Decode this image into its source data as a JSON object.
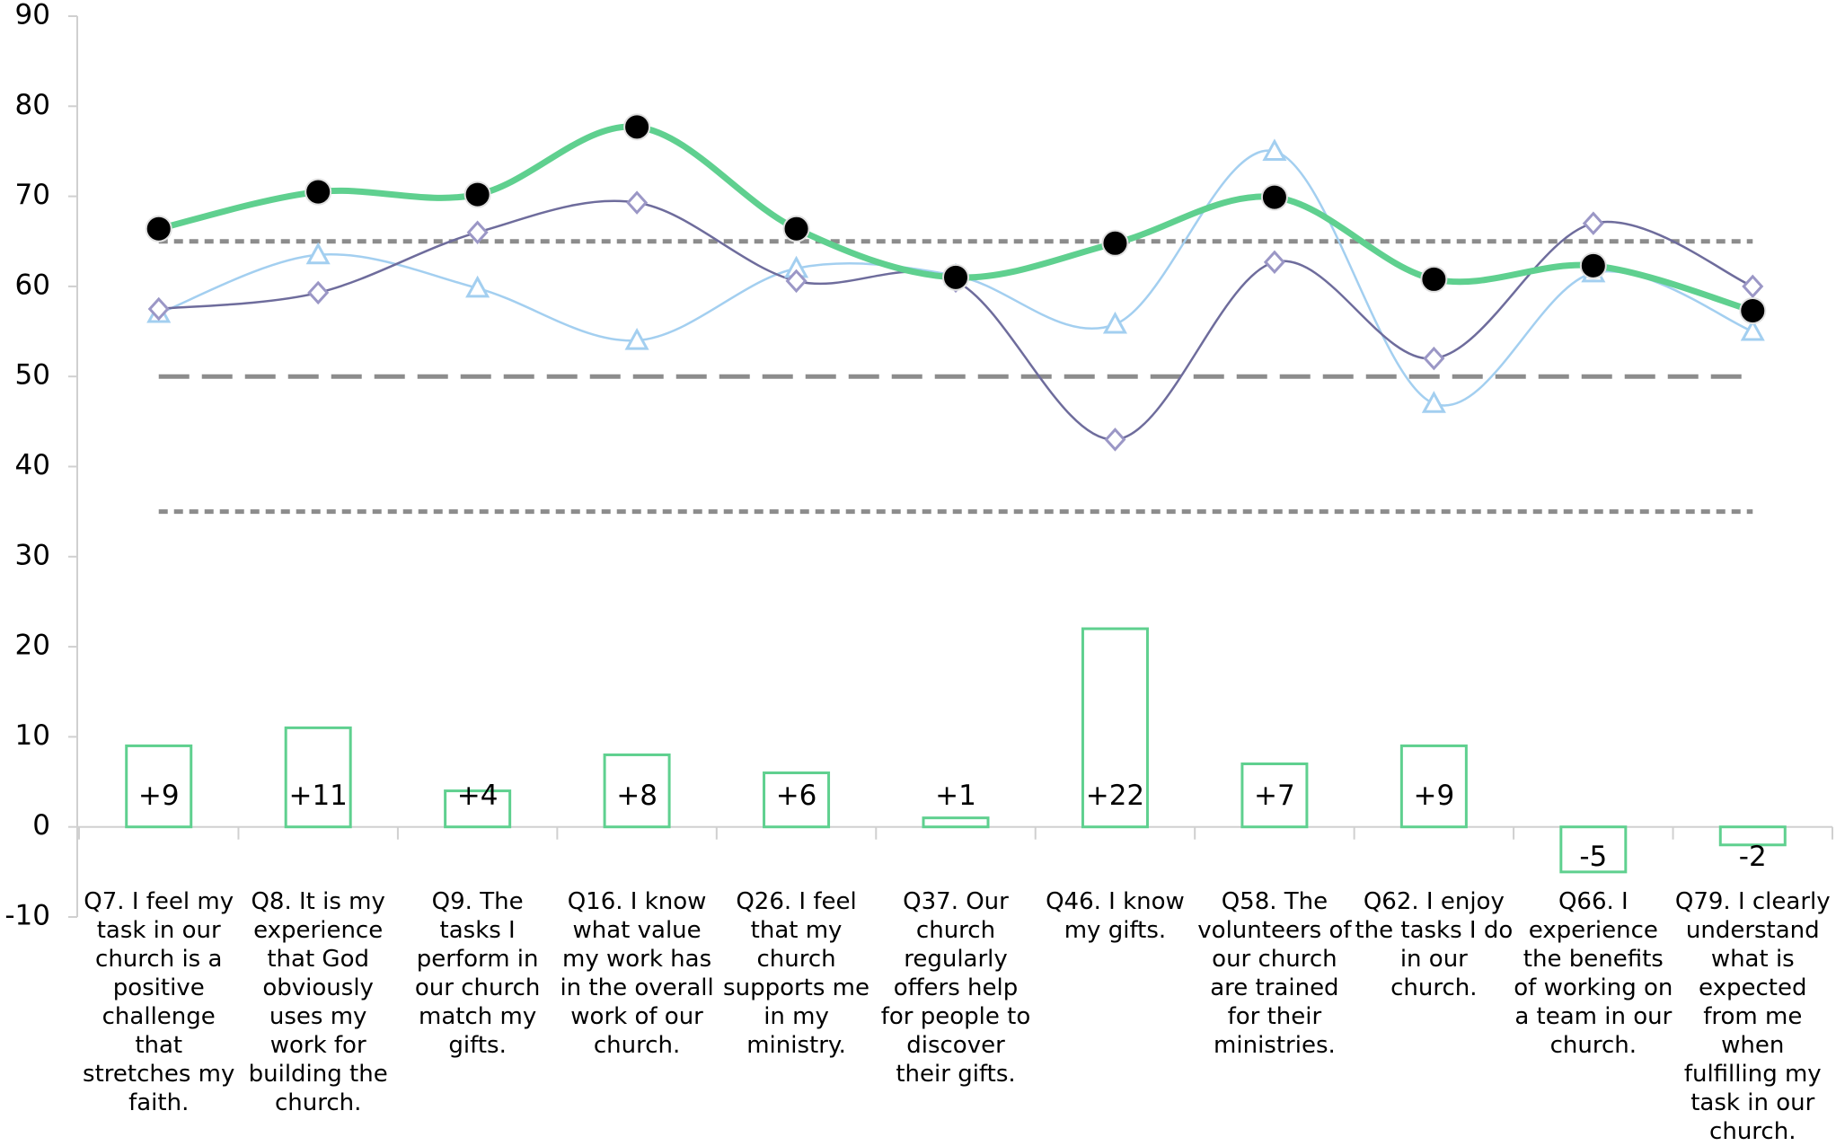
{
  "chart_data": {
    "type": "line_bar",
    "categories": [
      "Q7. I feel my task in our church is a positive challenge that stretches my faith.",
      "Q8. It is my experience that God obviously uses my work for building the church.",
      "Q9. The tasks I perform in our church match my gifts.",
      "Q16. I know what value my work has in the overall work of our church.",
      "Q26. I feel that my church supports me in my ministry.",
      "Q37. Our church regularly offers help for people to discover their gifts.",
      "Q46. I know my gifts.",
      "Q58. The volunteers of our church are trained for their ministries.",
      "Q62. I enjoy the tasks I do in our church.",
      "Q66. I experience the benefits of working on a team in our church.",
      "Q79. I clearly understand what is expected from me when fulfilling my task in our church."
    ],
    "series": [
      {
        "color": "#5fd08f",
        "marker": "circle",
        "marker_color": "#000000",
        "values": [
          66.4,
          70.5,
          70.2,
          77.7,
          66.4,
          61.0,
          64.8,
          69.9,
          60.8,
          62.3,
          57.3
        ]
      },
      {
        "color": "#6e6c9c",
        "marker": "diamond",
        "marker_color": "#9b97c6",
        "values": [
          57.5,
          59.3,
          66.0,
          69.3,
          60.6,
          60.6,
          43.0,
          62.7,
          52.0,
          67.0,
          60.0
        ]
      },
      {
        "color": "#a3cff0",
        "marker": "triangle",
        "marker_color": "#a3cff0",
        "values": [
          57.0,
          63.5,
          59.8,
          54.0,
          62.0,
          61.2,
          55.8,
          75.0,
          47.0,
          61.5,
          55.0
        ]
      }
    ],
    "bars": {
      "color": "#5fd08f",
      "values": [
        9,
        11,
        4,
        8,
        6,
        1,
        22,
        7,
        9,
        -5,
        -2
      ],
      "value_labels": [
        "+9",
        "+11",
        "+4",
        "+8",
        "+6",
        "+1",
        "+22",
        "+7",
        "+9",
        "-5",
        "-2"
      ]
    },
    "reference_lines": [
      {
        "value": 65,
        "style": "dotted"
      },
      {
        "value": 50,
        "style": "dashed"
      },
      {
        "value": 35,
        "style": "dotted"
      }
    ],
    "ylim": [
      -10,
      90
    ],
    "yticks": [
      -10,
      0,
      10,
      20,
      30,
      40,
      50,
      60,
      70,
      80,
      90
    ]
  }
}
